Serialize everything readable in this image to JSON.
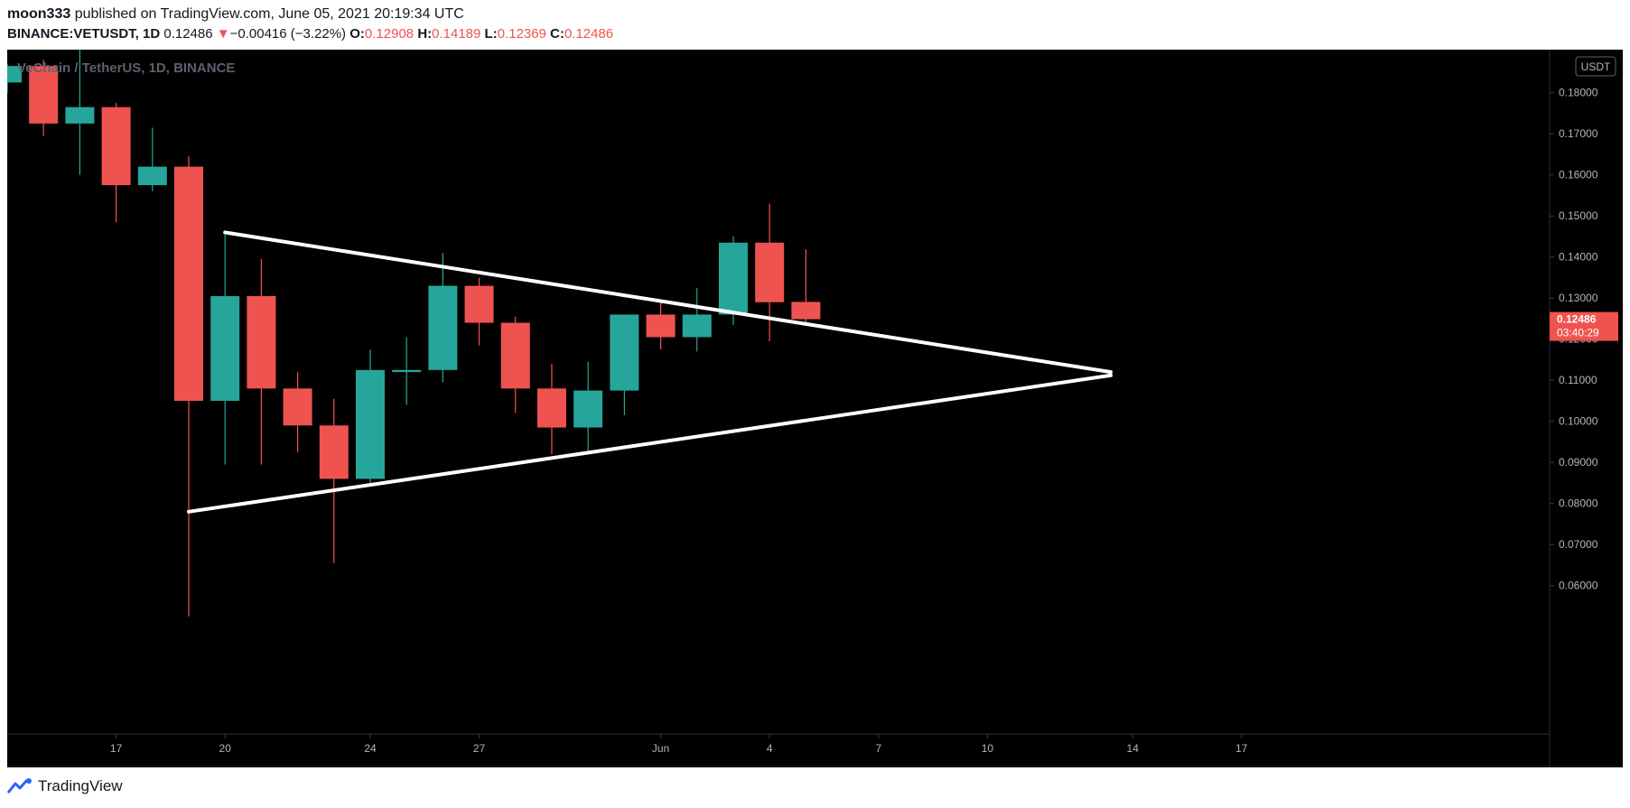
{
  "header": {
    "user": "moon333",
    "published": "published on TradingView.com, June 05, 2021 20:19:34 UTC",
    "symbol": "BINANCE:VETUSDT, 1D",
    "last": "0.12486",
    "arrow": "▼",
    "change": "−0.00416 (−3.22%)",
    "o_label": "O:",
    "o_value": "0.12908",
    "h_label": "H:",
    "h_value": "0.14189",
    "l_label": "L:",
    "l_value": "0.12369",
    "c_label": "C:",
    "c_value": "0.12486"
  },
  "footer": {
    "brand": "TradingView"
  },
  "colors": {
    "up": "#26a69a",
    "down": "#ef5350",
    "background": "#000000",
    "text_muted": "#5d606b",
    "trendline": "#ffffff"
  },
  "chart_data": {
    "type": "candlestick",
    "title": "VeChain / TetherUS, 1D, BINANCE",
    "currency_badge": "USDT",
    "ylim": [
      0.0545,
      0.1895
    ],
    "y_ticks": [
      0.06,
      0.07,
      0.08,
      0.09,
      0.1,
      0.11,
      0.12,
      0.13,
      0.14,
      0.15,
      0.16,
      0.17,
      0.18
    ],
    "x_ticks": [
      {
        "label": "17",
        "index": 3
      },
      {
        "label": "20",
        "index": 6
      },
      {
        "label": "24",
        "index": 10
      },
      {
        "label": "27",
        "index": 13
      },
      {
        "label": "Jun",
        "index": 18
      },
      {
        "label": "4",
        "index": 21
      },
      {
        "label": "7",
        "index": 24
      },
      {
        "label": "10",
        "index": 27
      },
      {
        "label": "14",
        "index": 31
      },
      {
        "label": "17",
        "index": 34
      }
    ],
    "candles": [
      {
        "i": 0,
        "o": 0.1825,
        "h": 0.187,
        "l": 0.18,
        "c": 0.1865
      },
      {
        "i": 1,
        "o": 0.1865,
        "h": 0.188,
        "l": 0.1695,
        "c": 0.1725
      },
      {
        "i": 2,
        "o": 0.1725,
        "h": 0.1915,
        "l": 0.16,
        "c": 0.1765
      },
      {
        "i": 3,
        "o": 0.1765,
        "h": 0.1775,
        "l": 0.1485,
        "c": 0.1575
      },
      {
        "i": 4,
        "o": 0.1575,
        "h": 0.1715,
        "l": 0.156,
        "c": 0.162
      },
      {
        "i": 5,
        "o": 0.162,
        "h": 0.1645,
        "l": 0.0525,
        "c": 0.105
      },
      {
        "i": 6,
        "o": 0.105,
        "h": 0.146,
        "l": 0.0895,
        "c": 0.1305
      },
      {
        "i": 7,
        "o": 0.1305,
        "h": 0.1395,
        "l": 0.0895,
        "c": 0.108
      },
      {
        "i": 8,
        "o": 0.108,
        "h": 0.112,
        "l": 0.0925,
        "c": 0.099
      },
      {
        "i": 9,
        "o": 0.099,
        "h": 0.1055,
        "l": 0.0655,
        "c": 0.086
      },
      {
        "i": 10,
        "o": 0.086,
        "h": 0.1175,
        "l": 0.085,
        "c": 0.1125
      },
      {
        "i": 11,
        "o": 0.112,
        "h": 0.1205,
        "l": 0.104,
        "c": 0.1125
      },
      {
        "i": 12,
        "o": 0.1125,
        "h": 0.141,
        "l": 0.1095,
        "c": 0.133
      },
      {
        "i": 13,
        "o": 0.133,
        "h": 0.135,
        "l": 0.1185,
        "c": 0.124
      },
      {
        "i": 14,
        "o": 0.124,
        "h": 0.1255,
        "l": 0.102,
        "c": 0.108
      },
      {
        "i": 15,
        "o": 0.108,
        "h": 0.114,
        "l": 0.092,
        "c": 0.0985
      },
      {
        "i": 16,
        "o": 0.0985,
        "h": 0.1145,
        "l": 0.0925,
        "c": 0.1075
      },
      {
        "i": 17,
        "o": 0.1075,
        "h": 0.126,
        "l": 0.1015,
        "c": 0.126
      },
      {
        "i": 18,
        "o": 0.126,
        "h": 0.1295,
        "l": 0.1175,
        "c": 0.1205
      },
      {
        "i": 19,
        "o": 0.1205,
        "h": 0.1325,
        "l": 0.117,
        "c": 0.126
      },
      {
        "i": 20,
        "o": 0.126,
        "h": 0.145,
        "l": 0.1235,
        "c": 0.1435
      },
      {
        "i": 21,
        "o": 0.1435,
        "h": 0.153,
        "l": 0.1195,
        "c": 0.129
      },
      {
        "i": 22,
        "o": 0.12908,
        "h": 0.14189,
        "l": 0.12369,
        "c": 0.12486
      }
    ],
    "trendlines": [
      {
        "from": {
          "i": 6,
          "y": 0.146
        },
        "to": {
          "i": 30.4,
          "y": 0.112
        }
      },
      {
        "from": {
          "i": 5,
          "y": 0.078
        },
        "to": {
          "i": 30.4,
          "y": 0.1112
        }
      }
    ],
    "last_price": {
      "value": 0.12486,
      "label": "0.12486",
      "countdown": "03:40:29"
    }
  }
}
